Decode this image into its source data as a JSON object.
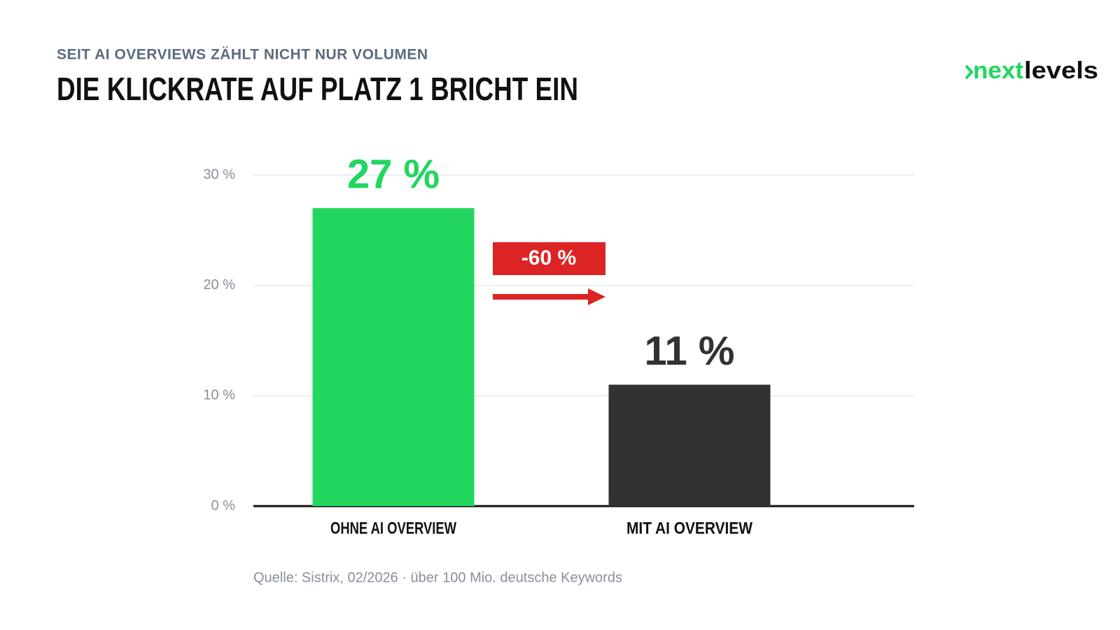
{
  "chart_data": {
    "type": "bar",
    "subtitle": "SEIT AI OVERVIEWS ZÄHLT NICHT NUR VOLUMEN",
    "title": "DIE KLICKRATE AUF PLATZ 1 BRICHT EIN",
    "logo": {
      "accent": "next",
      "rest": "levels"
    },
    "categories": [
      "OHNE AI OVERVIEW",
      "MIT AI OVERVIEW"
    ],
    "values": [
      27,
      11
    ],
    "value_labels": [
      "27 %",
      "11 %"
    ],
    "colors": [
      "#22d660",
      "#313234"
    ],
    "ylim": [
      0,
      30
    ],
    "yticks": [
      {
        "value": 0,
        "label": "0 %"
      },
      {
        "value": 10,
        "label": "10 %"
      },
      {
        "value": 20,
        "label": "20 %"
      },
      {
        "value": 30,
        "label": "30 %"
      }
    ],
    "grid": true,
    "annotation": {
      "text": "-60 %",
      "color": "#dd2424"
    },
    "source": "Quelle: Sistrix, 02/2026 · über 100 Mio. deutsche Keywords"
  }
}
